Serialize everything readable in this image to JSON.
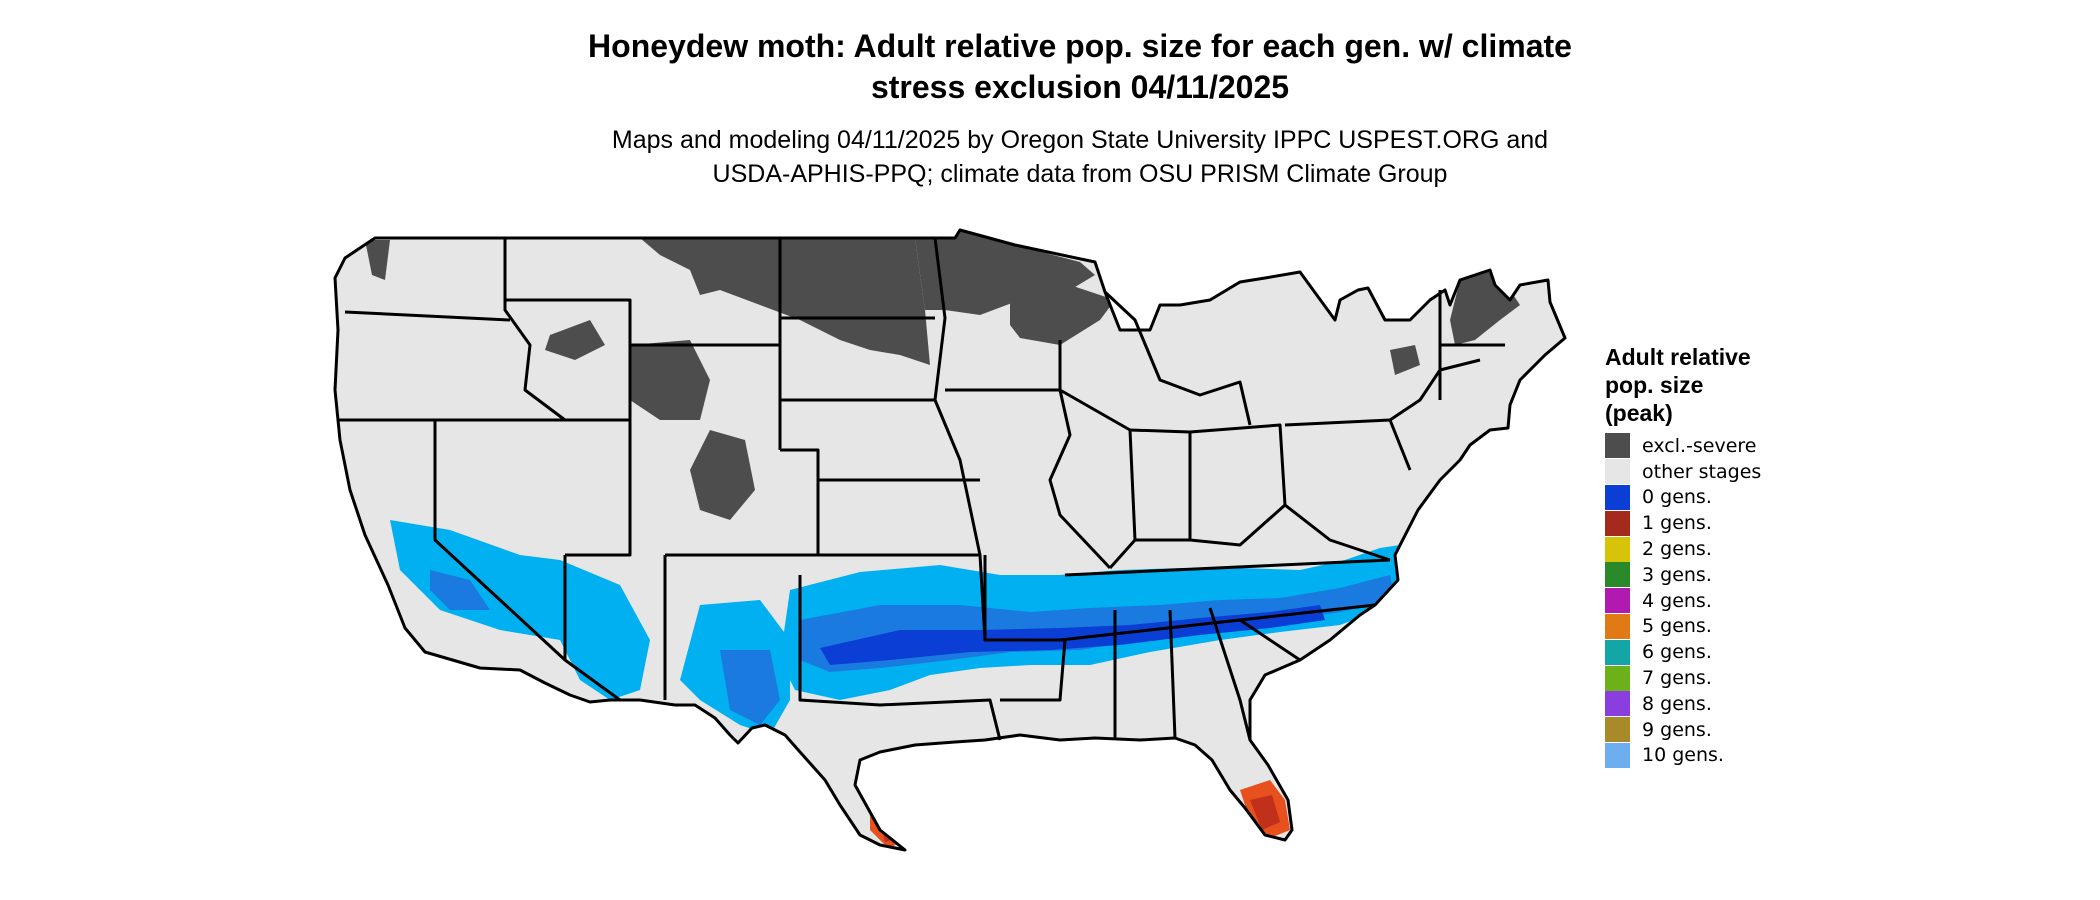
{
  "title": {
    "line1": "Honeydew moth: Adult relative pop. size for each gen. w/ climate",
    "line2": "stress exclusion 04/11/2025"
  },
  "subtitle": {
    "line1": "Maps and modeling 04/11/2025 by Oregon State University IPPC USPEST.ORG and",
    "line2": "USDA-APHIS-PPQ; climate data from OSU PRISM Climate Group"
  },
  "legend": {
    "title": [
      "Adult relative",
      "pop. size",
      "(peak)"
    ],
    "items": [
      {
        "label": "excl.-severe",
        "color": "#4d4d4d"
      },
      {
        "label": "other stages",
        "color": "#e6e6e6"
      },
      {
        "label": "0 gens.",
        "color": "#0a3ed4"
      },
      {
        "label": "1 gens.",
        "color": "#a52a1e"
      },
      {
        "label": "2 gens.",
        "color": "#d6c30a"
      },
      {
        "label": "3 gens.",
        "color": "#2a8a2a"
      },
      {
        "label": "4 gens.",
        "color": "#b01ab0"
      },
      {
        "label": "5 gens.",
        "color": "#e07a14"
      },
      {
        "label": "6 gens.",
        "color": "#14a6a6"
      },
      {
        "label": "7 gens.",
        "color": "#6cb01a"
      },
      {
        "label": "8 gens.",
        "color": "#8a3ee0"
      },
      {
        "label": "9 gens.",
        "color": "#a88a2a"
      },
      {
        "label": "10 gens.",
        "color": "#6eaef0"
      }
    ]
  },
  "map_colors": {
    "land": "#e6e6e6",
    "excluded": "#4d4d4d",
    "low_density": "#00b0f0",
    "mid_density": "#1a7ae0",
    "high_density": "#0a3ed4",
    "one_gen_orange": "#e8501e",
    "one_gen_red": "#c0301a"
  }
}
